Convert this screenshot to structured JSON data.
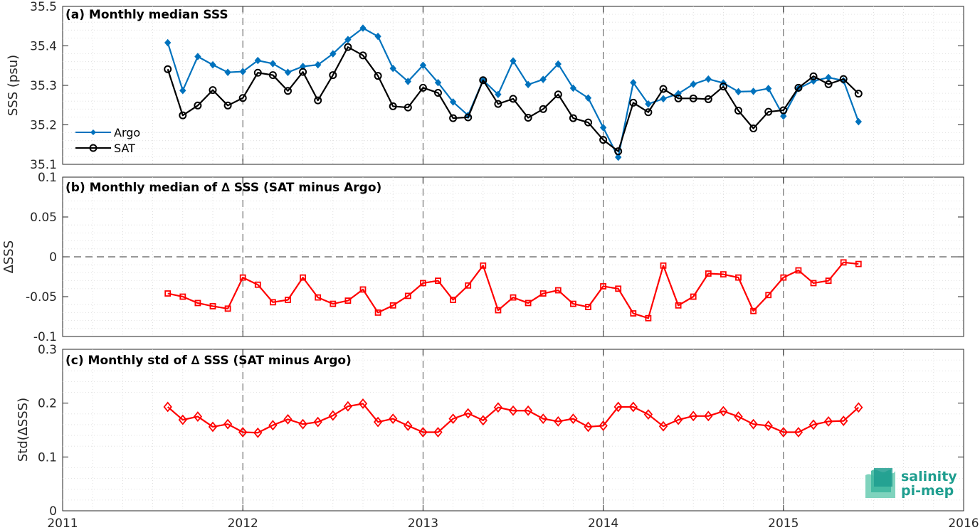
{
  "chart_data": [
    {
      "type": "line",
      "title": "(a) Monthly median SSS",
      "ylabel": "SSS (psu)",
      "ylim": [
        35.1,
        35.5
      ],
      "yticks": [
        "35.1",
        "35.2",
        "35.3",
        "35.4",
        "35.5"
      ],
      "xlim": [
        "2011-01",
        "2016-01"
      ],
      "xticks": [
        "2011",
        "2012",
        "2013",
        "2014",
        "2015",
        "2016"
      ],
      "grid": true,
      "legend": "left",
      "x": [
        "2011-08",
        "2011-09",
        "2011-10",
        "2011-11",
        "2011-12",
        "2012-01",
        "2012-02",
        "2012-03",
        "2012-04",
        "2012-05",
        "2012-06",
        "2012-07",
        "2012-08",
        "2012-09",
        "2012-10",
        "2012-11",
        "2012-12",
        "2013-01",
        "2013-02",
        "2013-03",
        "2013-04",
        "2013-05",
        "2013-06",
        "2013-07",
        "2013-08",
        "2013-09",
        "2013-10",
        "2013-11",
        "2013-12",
        "2014-01",
        "2014-02",
        "2014-03",
        "2014-04",
        "2014-05",
        "2014-06",
        "2014-07",
        "2014-08",
        "2014-09",
        "2014-10",
        "2014-11",
        "2014-12",
        "2015-01",
        "2015-02",
        "2015-03",
        "2015-04",
        "2015-05",
        "2015-06"
      ],
      "series": [
        {
          "name": "Argo",
          "color": "#0072bd",
          "marker": "diamond",
          "values": [
            35.408,
            35.287,
            35.373,
            35.352,
            35.333,
            35.335,
            35.363,
            35.355,
            35.333,
            35.348,
            35.352,
            35.38,
            35.416,
            35.445,
            35.424,
            35.343,
            35.31,
            35.351,
            35.307,
            35.258,
            35.224,
            35.313,
            35.277,
            35.362,
            35.302,
            35.315,
            35.354,
            35.293,
            35.268,
            35.193,
            35.118,
            35.307,
            35.253,
            35.266,
            35.279,
            35.303,
            35.316,
            35.306,
            35.284,
            35.285,
            35.292,
            35.222,
            35.292,
            35.311,
            35.32,
            35.312,
            35.208
          ]
        },
        {
          "name": "SAT",
          "color": "#000000",
          "marker": "circle",
          "values": [
            35.341,
            35.224,
            35.249,
            35.288,
            35.249,
            35.268,
            35.332,
            35.326,
            35.286,
            35.334,
            35.262,
            35.326,
            35.397,
            35.376,
            35.324,
            35.247,
            35.244,
            35.294,
            35.281,
            35.217,
            35.219,
            35.313,
            35.253,
            35.266,
            35.218,
            35.24,
            35.277,
            35.217,
            35.206,
            35.162,
            35.133,
            35.256,
            35.232,
            35.291,
            35.267,
            35.267,
            35.265,
            35.297,
            35.236,
            35.191,
            35.233,
            35.237,
            35.294,
            35.323,
            35.303,
            35.316,
            35.279
          ]
        }
      ]
    },
    {
      "type": "line",
      "title": "(b) Monthly median of ∆ SSS (SAT minus Argo)",
      "ylabel": "∆SSS",
      "ylim": [
        -0.1,
        0.1
      ],
      "yticks": [
        "-0.1",
        "-0.05",
        "0",
        "0.05",
        "0.1"
      ],
      "xlim": [
        "2011-01",
        "2016-01"
      ],
      "grid": true,
      "zero_line": true,
      "x": [
        "2011-08",
        "2011-09",
        "2011-10",
        "2011-11",
        "2011-12",
        "2012-01",
        "2012-02",
        "2012-03",
        "2012-04",
        "2012-05",
        "2012-06",
        "2012-07",
        "2012-08",
        "2012-09",
        "2012-10",
        "2012-11",
        "2012-12",
        "2013-01",
        "2013-02",
        "2013-03",
        "2013-04",
        "2013-05",
        "2013-06",
        "2013-07",
        "2013-08",
        "2013-09",
        "2013-10",
        "2013-11",
        "2013-12",
        "2014-01",
        "2014-02",
        "2014-03",
        "2014-04",
        "2014-05",
        "2014-06",
        "2014-07",
        "2014-08",
        "2014-09",
        "2014-10",
        "2014-11",
        "2014-12",
        "2015-01",
        "2015-02",
        "2015-03",
        "2015-04",
        "2015-05",
        "2015-06"
      ],
      "series": [
        {
          "color": "#ff0000",
          "marker": "square",
          "values": [
            -0.046,
            -0.05,
            -0.058,
            -0.062,
            -0.065,
            -0.026,
            -0.035,
            -0.057,
            -0.054,
            -0.026,
            -0.051,
            -0.059,
            -0.055,
            -0.041,
            -0.07,
            -0.061,
            -0.049,
            -0.033,
            -0.03,
            -0.054,
            -0.036,
            -0.011,
            -0.067,
            -0.051,
            -0.058,
            -0.046,
            -0.042,
            -0.059,
            -0.063,
            -0.037,
            -0.04,
            -0.071,
            -0.077,
            -0.011,
            -0.061,
            -0.05,
            -0.021,
            -0.022,
            -0.026,
            -0.068,
            -0.048,
            -0.026,
            -0.017,
            -0.033,
            -0.03,
            -0.007,
            -0.009
          ]
        }
      ]
    },
    {
      "type": "line",
      "title": "(c) Monthly std of ∆ SSS (SAT minus Argo)",
      "ylabel": "Std(∆SSS)",
      "ylim": [
        0,
        0.3
      ],
      "yticks": [
        "0",
        "0.1",
        "0.2",
        "0.3"
      ],
      "xlim": [
        "2011-01",
        "2016-01"
      ],
      "xticks": [
        "2011",
        "2012",
        "2013",
        "2014",
        "2015",
        "2016"
      ],
      "grid": true,
      "x": [
        "2011-08",
        "2011-09",
        "2011-10",
        "2011-11",
        "2011-12",
        "2012-01",
        "2012-02",
        "2012-03",
        "2012-04",
        "2012-05",
        "2012-06",
        "2012-07",
        "2012-08",
        "2012-09",
        "2012-10",
        "2012-11",
        "2012-12",
        "2013-01",
        "2013-02",
        "2013-03",
        "2013-04",
        "2013-05",
        "2013-06",
        "2013-07",
        "2013-08",
        "2013-09",
        "2013-10",
        "2013-11",
        "2013-12",
        "2014-01",
        "2014-02",
        "2014-03",
        "2014-04",
        "2014-05",
        "2014-06",
        "2014-07",
        "2014-08",
        "2014-09",
        "2014-10",
        "2014-11",
        "2014-12",
        "2015-01",
        "2015-02",
        "2015-03",
        "2015-04",
        "2015-05",
        "2015-06"
      ],
      "series": [
        {
          "color": "#ff0000",
          "marker": "diamond",
          "values": [
            0.193,
            0.169,
            0.175,
            0.156,
            0.161,
            0.146,
            0.145,
            0.159,
            0.17,
            0.161,
            0.165,
            0.177,
            0.194,
            0.199,
            0.165,
            0.171,
            0.158,
            0.146,
            0.146,
            0.171,
            0.181,
            0.168,
            0.192,
            0.186,
            0.186,
            0.171,
            0.166,
            0.171,
            0.156,
            0.158,
            0.193,
            0.193,
            0.179,
            0.157,
            0.169,
            0.176,
            0.176,
            0.185,
            0.175,
            0.161,
            0.158,
            0.146,
            0.146,
            0.16,
            0.166,
            0.167,
            0.192
          ]
        }
      ]
    }
  ],
  "logo": {
    "line1": "salinity",
    "line2": "pi-mep"
  },
  "colors": {
    "argo": "#0072bd",
    "sat": "#000000",
    "delta": "#ff0000",
    "logo": "#1f9e8f"
  }
}
